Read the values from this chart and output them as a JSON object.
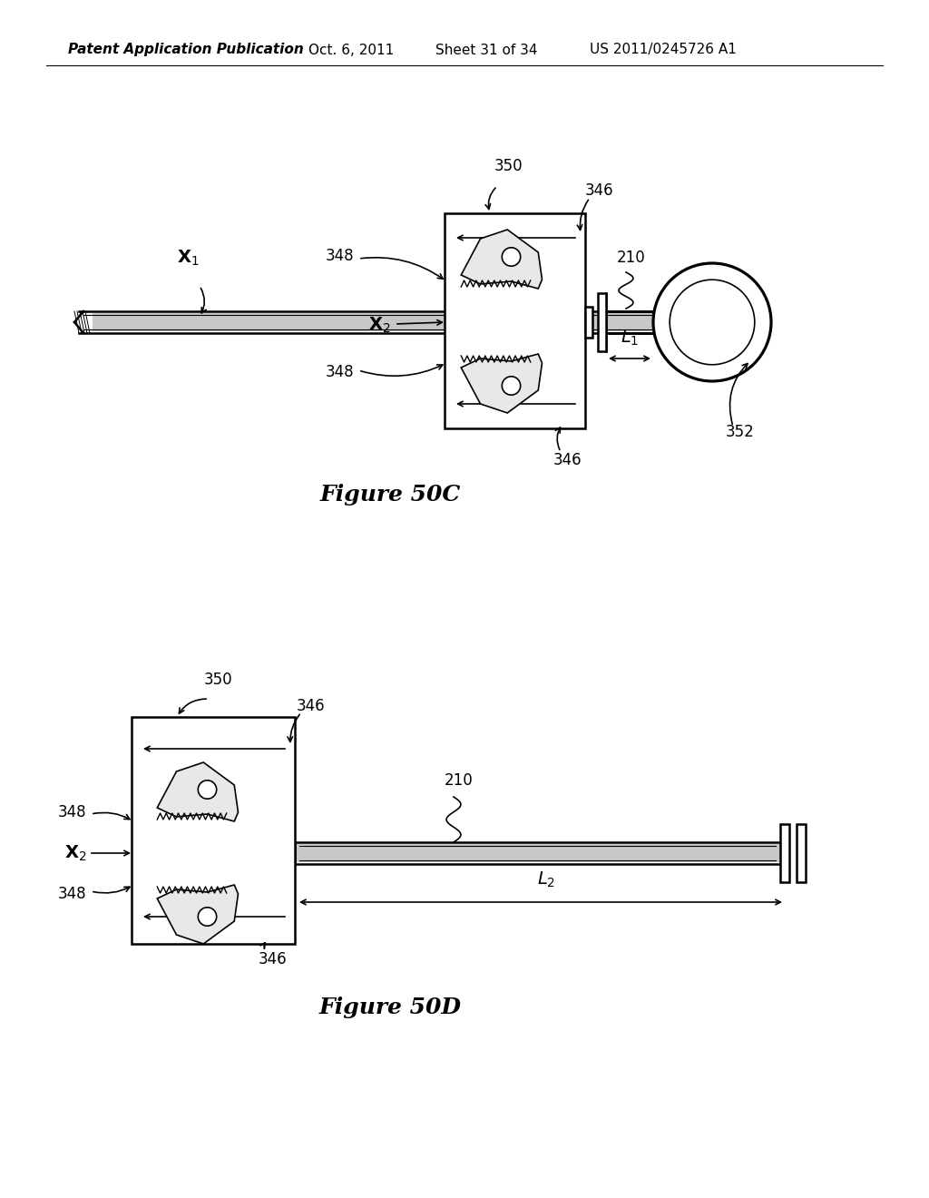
{
  "bg_color": "#ffffff",
  "line_color": "#000000",
  "header_text": "Patent Application Publication",
  "header_date": "Oct. 6, 2011",
  "header_sheet": "Sheet 31 of 34",
  "header_patent": "US 2011/0245726 A1",
  "fig_50c_title": "Figure 50C",
  "fig_50d_title": "Figure 50D",
  "title_fontsize": 16,
  "label_fontsize": 12,
  "header_fontsize": 11
}
